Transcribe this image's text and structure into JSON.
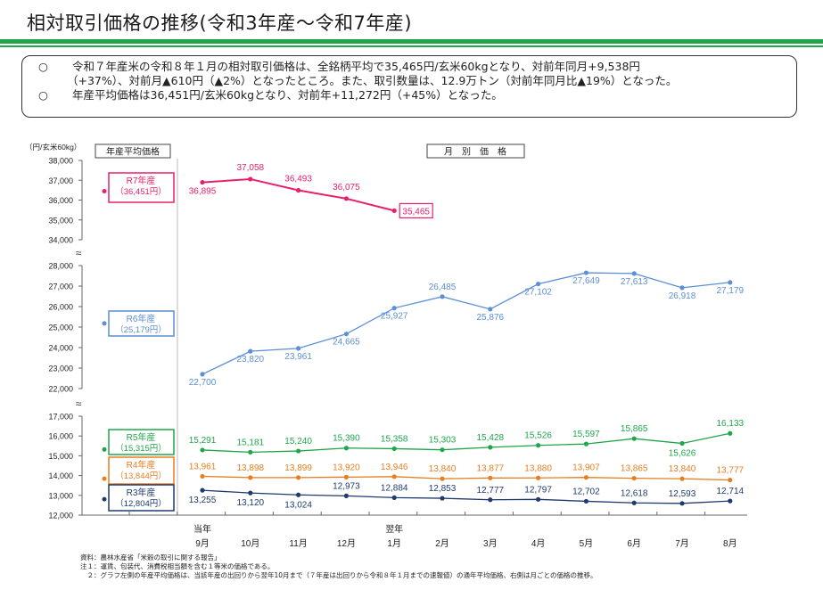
{
  "page": {
    "title": "相対取引価格の推移(令和3年産～令和7年産)",
    "summary": [
      {
        "bullet": "○",
        "lines": [
          "令和７年産米の令和８年１月の相対取引価格は、全銘柄平均で35,465円/玄米60kgとなり、対前年同月+9,538円",
          "（+37%）、対前月▲610円（▲2%）となったところ。また、取引数量は、12.9万トン（対前年同月比▲19%）となった。"
        ]
      },
      {
        "bullet": "○",
        "lines": [
          "年産平均価格は36,451円/玄米60kgとなり、対前年+11,272円（+45%）となった。"
        ]
      }
    ],
    "notes": [
      "資料：農林水産省「米穀の取引に関する報告」",
      "注１：運賃、包装代、消費税相当額を含む１等米の価格である。",
      "　２：グラフ左側の年産平均価格は、当該年産の出回りから翌年10月まで（７年産は出回りから令和８年１月までの速報値）の通年平均価格、右側は月ごとの価格の推移。"
    ]
  },
  "chart_data": {
    "type": "line",
    "ylabel": "（円/玄米60kg）",
    "left_panel_label": "年産平均価格",
    "right_panel_label": "月　別　価　格",
    "year_labels": [
      "当年",
      "翌年"
    ],
    "categories": [
      "9月",
      "10月",
      "11月",
      "12月",
      "1月",
      "2月",
      "3月",
      "4月",
      "5月",
      "6月",
      "7月",
      "8月"
    ],
    "axis_break_symbol": "≈",
    "y_segments": [
      {
        "ticks": [
          "38,000",
          "37,000",
          "36,000",
          "35,000",
          "34,000"
        ],
        "range": [
          34000,
          38000
        ]
      },
      {
        "ticks": [
          "28,000",
          "27,000",
          "26,000",
          "25,000",
          "24,000",
          "23,000",
          "22,000"
        ],
        "range": [
          22000,
          28000
        ]
      },
      {
        "ticks": [
          "17,000",
          "16,000",
          "15,000",
          "14,000",
          "13,000",
          "12,000"
        ],
        "range": [
          12000,
          17000
        ]
      }
    ],
    "series": [
      {
        "name": "R7年産",
        "annual_label": "（36,451円）",
        "annual_avg": 36451,
        "color": "#e8206c",
        "segment": 0,
        "values": [
          36895,
          37058,
          36493,
          36075,
          35465,
          null,
          null,
          null,
          null,
          null,
          null,
          null
        ],
        "labels": [
          "36,895",
          "37,058",
          "36,493",
          "36,075",
          "35,465"
        ]
      },
      {
        "name": "R6年産",
        "annual_label": "（25,179円）",
        "annual_avg": 25179,
        "color": "#5b8fd6",
        "segment": 1,
        "values": [
          22700,
          23820,
          23961,
          24665,
          25927,
          26485,
          25876,
          27102,
          27649,
          27613,
          26918,
          27179
        ],
        "labels": [
          "22,700",
          "23,820",
          "23,961",
          "24,665",
          "25,927",
          "26,485",
          "25,876",
          "27,102",
          "27,649",
          "27,613",
          "26,918",
          "27,179"
        ]
      },
      {
        "name": "R5年産",
        "annual_label": "（15,315円）",
        "annual_avg": 15315,
        "color": "#1fa64a",
        "segment": 2,
        "values": [
          15291,
          15181,
          15240,
          15390,
          15358,
          15303,
          15428,
          15526,
          15597,
          15865,
          15626,
          16133
        ],
        "labels": [
          "15,291",
          "15,181",
          "15,240",
          "15,390",
          "15,358",
          "15,303",
          "15,428",
          "15,526",
          "15,597",
          "15,865",
          "15,626",
          "16,133"
        ]
      },
      {
        "name": "R4年産",
        "annual_label": "（13,844円）",
        "annual_avg": 13844,
        "color": "#e67e22",
        "segment": 2,
        "values": [
          13961,
          13898,
          13899,
          13920,
          13946,
          13840,
          13877,
          13880,
          13907,
          13865,
          13840,
          13777
        ],
        "labels": [
          "13,961",
          "13,898",
          "13,899",
          "13,920",
          "13,946",
          "13,840",
          "13,877",
          "13,880",
          "13,907",
          "13,865",
          "13,840",
          "13,777"
        ]
      },
      {
        "name": "R3年産",
        "annual_label": "（12,804円）",
        "annual_avg": 12804,
        "color": "#1f3a6e",
        "segment": 2,
        "values": [
          13255,
          13120,
          13024,
          12973,
          12884,
          12853,
          12777,
          12797,
          12702,
          12618,
          12593,
          12714
        ],
        "labels": [
          "13,255",
          "13,120",
          "13,024",
          "12,973",
          "12,884",
          "12,853",
          "12,777",
          "12,797",
          "12,702",
          "12,618",
          "12,593",
          "12,714"
        ]
      }
    ]
  }
}
